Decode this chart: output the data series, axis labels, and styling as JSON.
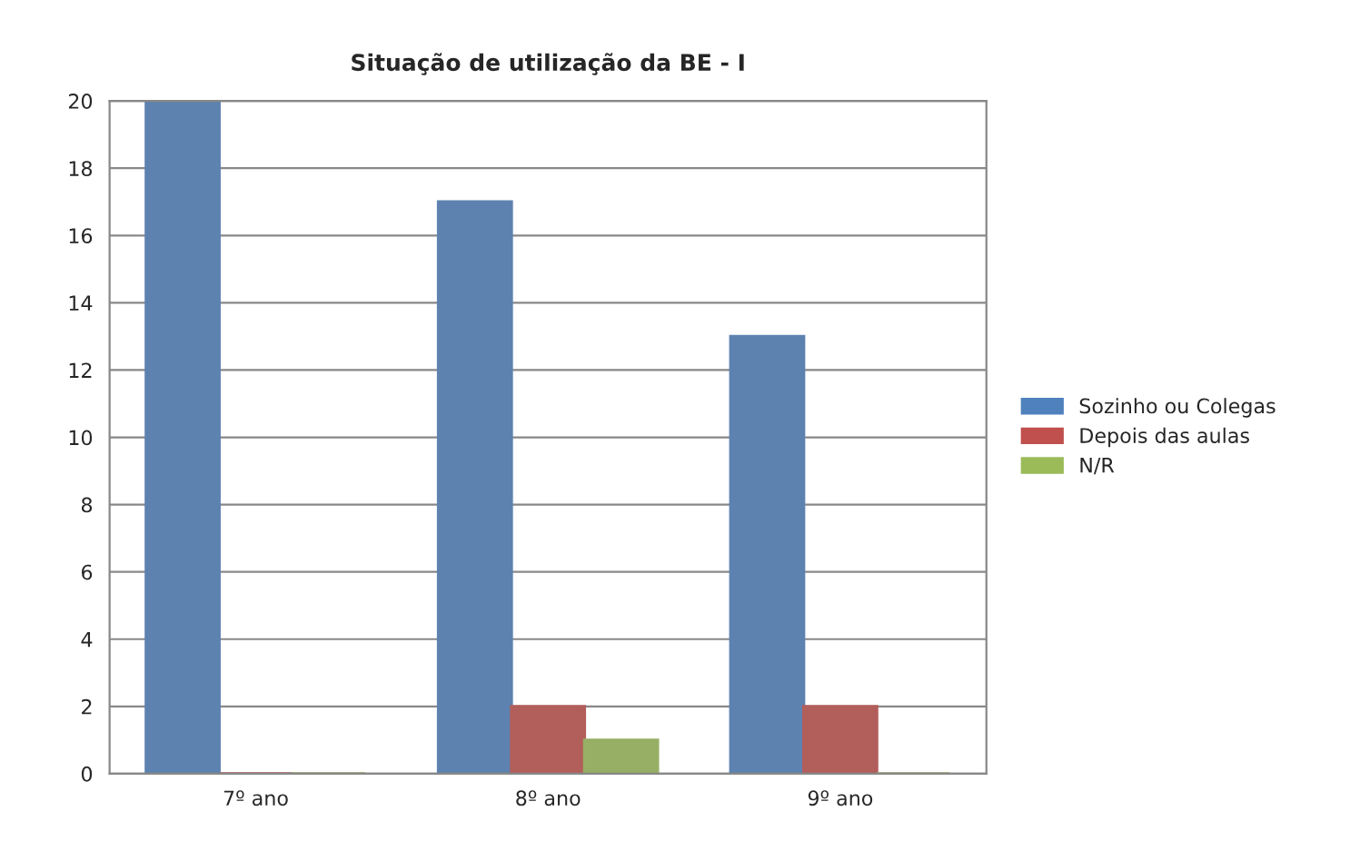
{
  "chart_data": {
    "type": "bar",
    "title": "Situação de utilização da BE - I",
    "categories": [
      "7º ano",
      "8º ano",
      "9º ano"
    ],
    "series": [
      {
        "name": "Sozinho ou Colegas",
        "color": "#4f81bd",
        "values": [
          20,
          17,
          13
        ]
      },
      {
        "name": "Depois das aulas",
        "color": "#c0504d",
        "values": [
          0,
          2,
          2
        ]
      },
      {
        "name": "N/R",
        "color": "#9bbb59",
        "values": [
          0,
          1,
          0
        ]
      }
    ],
    "ylim": [
      0,
      20
    ],
    "yticks": [
      0,
      2,
      4,
      6,
      8,
      10,
      12,
      14,
      16,
      18,
      20
    ],
    "grid": "y",
    "legend": "right"
  }
}
